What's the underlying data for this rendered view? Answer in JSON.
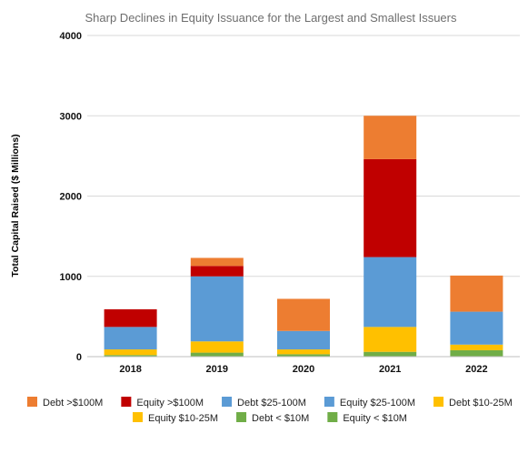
{
  "chart_data": {
    "type": "bar",
    "stacked": true,
    "title": "Sharp Declines in Equity Issuance for the Largest and Smallest Issuers",
    "ylabel": "Total Capital Raised ($ Millions)",
    "xlabel": "",
    "ylim": [
      0,
      4000
    ],
    "yticks": [
      0,
      1000,
      2000,
      3000,
      4000
    ],
    "grid": true,
    "legend_position": "bottom",
    "categories": [
      "2018",
      "2019",
      "2020",
      "2021",
      "2022"
    ],
    "series": [
      {
        "name": "Equity < $10M",
        "color": "#70ad47",
        "values": [
          20,
          50,
          30,
          60,
          80
        ]
      },
      {
        "name": "Debt < $10M",
        "color": "#70ad47",
        "values": [
          0,
          0,
          0,
          0,
          0
        ]
      },
      {
        "name": "Equity  $10-25M",
        "color": "#ffc000",
        "values": [
          70,
          140,
          60,
          310,
          70
        ]
      },
      {
        "name": "Debt $10-25M",
        "color": "#ffc000",
        "values": [
          0,
          0,
          0,
          0,
          0
        ]
      },
      {
        "name": "Equity $25-100M",
        "color": "#5b9bd5",
        "values": [
          280,
          810,
          230,
          870,
          410
        ]
      },
      {
        "name": "Debt $25-100M",
        "color": "#5b9bd5",
        "values": [
          0,
          0,
          0,
          0,
          0
        ]
      },
      {
        "name": "Equity >$100M",
        "color": "#c00000",
        "values": [
          220,
          130,
          0,
          1220,
          0
        ]
      },
      {
        "name": "Debt >$100M",
        "color": "#ed7d31",
        "values": [
          0,
          100,
          400,
          540,
          450
        ]
      }
    ],
    "legend_rows": [
      [
        "Debt >$100M",
        "Equity >$100M",
        "Debt $25-100M",
        "Equity $25-100M",
        "Debt $10-25M"
      ],
      [
        "Equity  $10-25M",
        "Debt < $10M",
        "Equity < $10M"
      ]
    ]
  }
}
